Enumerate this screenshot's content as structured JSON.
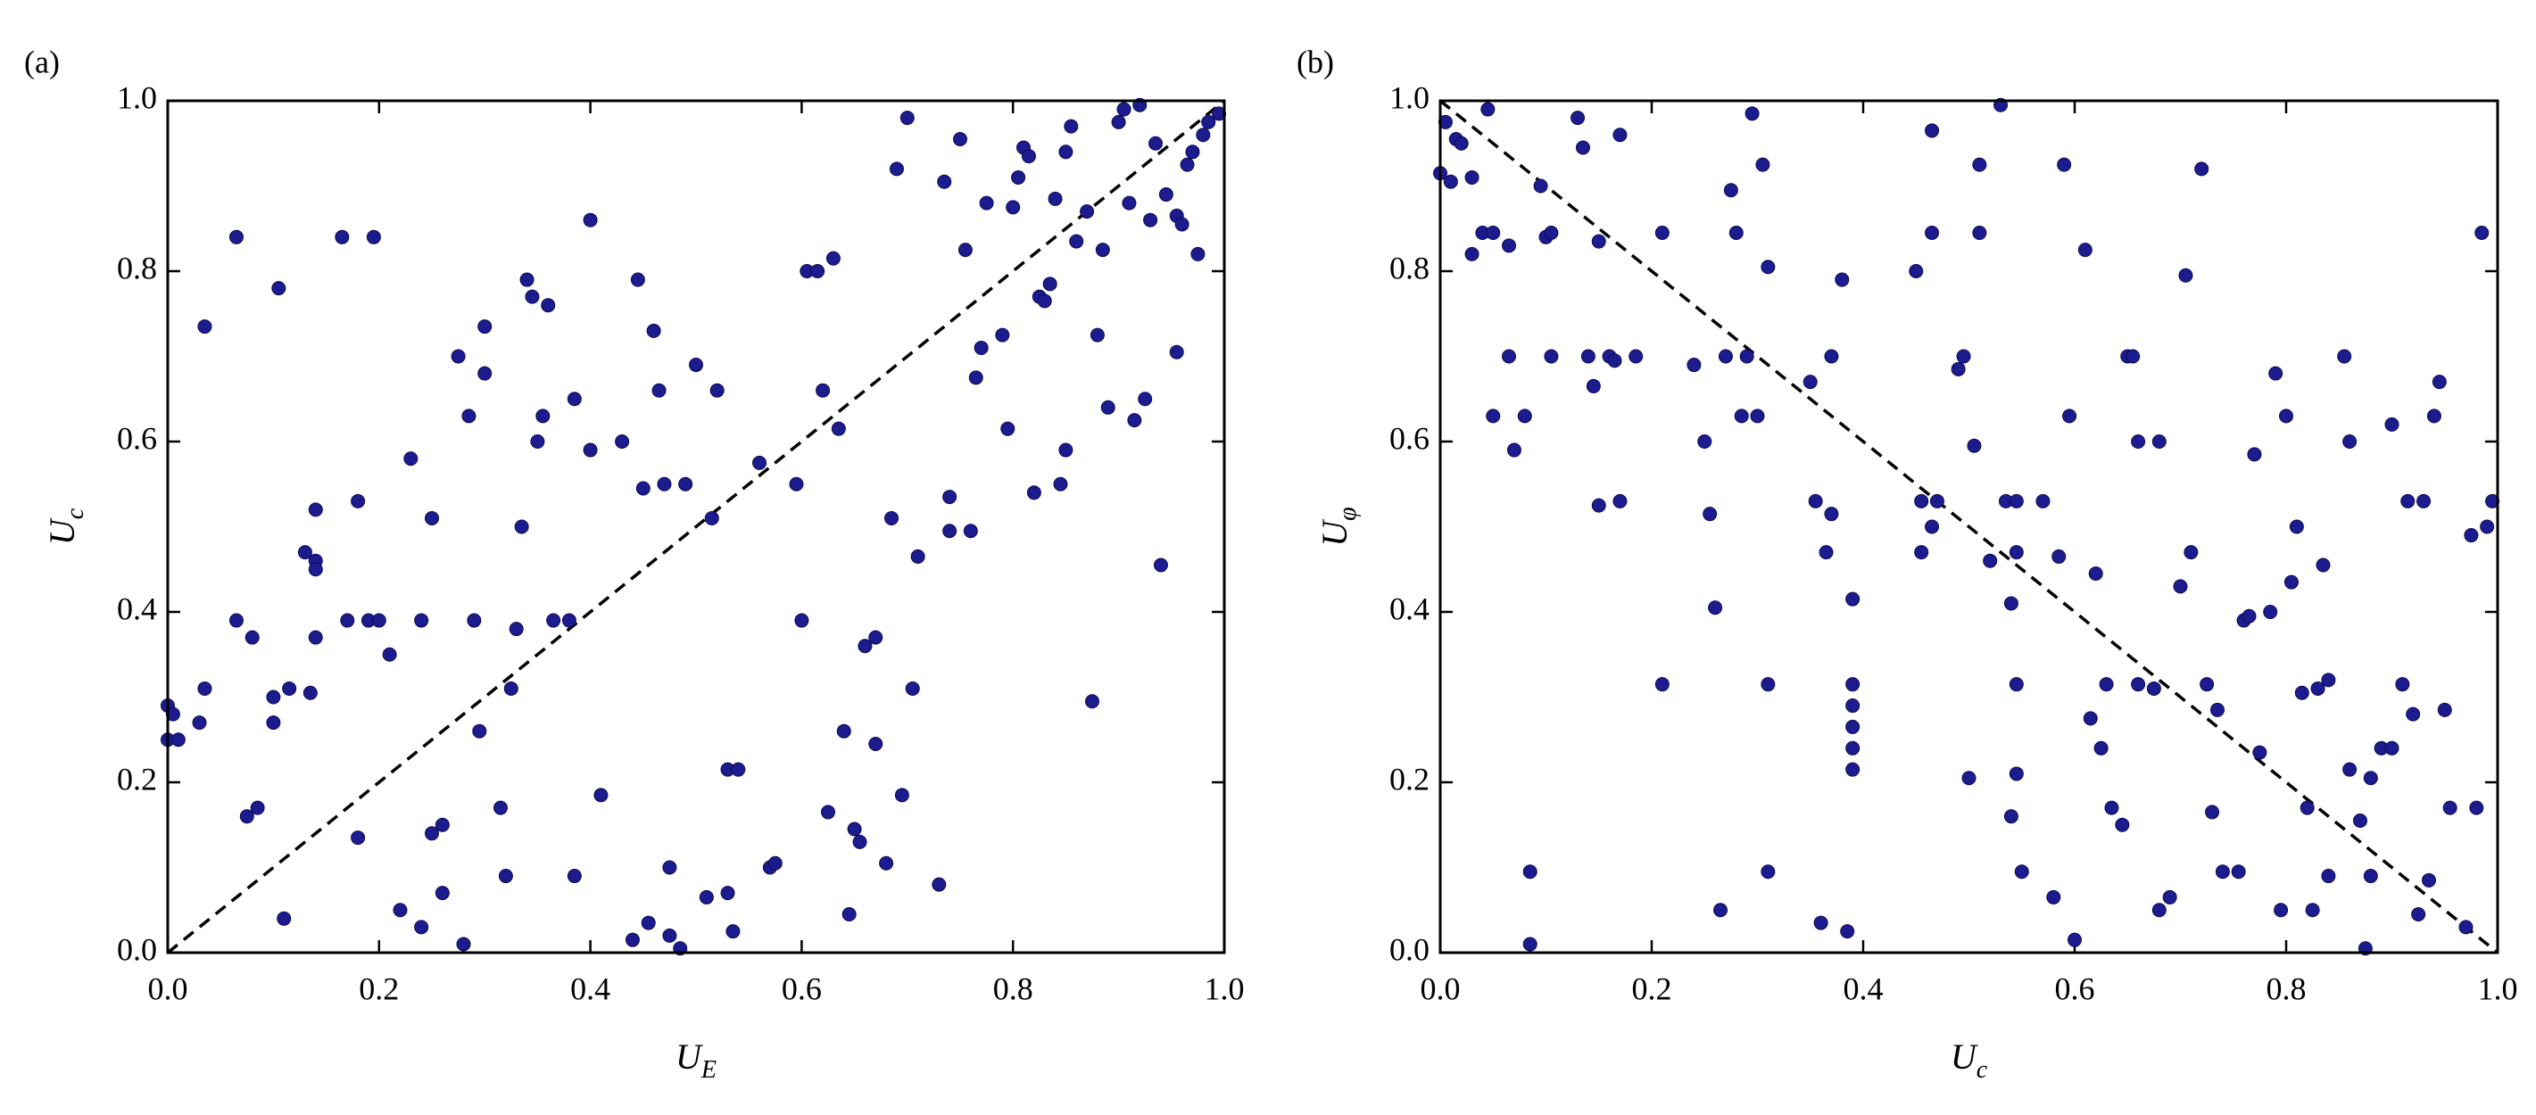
{
  "chart_data": [
    {
      "type": "scatter",
      "panel_label": "(a)",
      "x_label": {
        "main": "U",
        "sub": "E"
      },
      "y_label": {
        "main": "U",
        "sub": "c"
      },
      "color": "#1c1c8f",
      "xlim": [
        0,
        1
      ],
      "ylim": [
        0,
        1
      ],
      "xticks": [
        {
          "value": 0,
          "label": "0.0"
        },
        0.2,
        0.4,
        0.6,
        0.8,
        {
          "value": 1,
          "label": "1.0"
        }
      ],
      "yticks": [
        {
          "value": 0,
          "label": "0.0"
        },
        0.2,
        0.4,
        0.6,
        0.8,
        {
          "value": 1,
          "label": "1.0"
        }
      ],
      "reference_line": {
        "x": [
          0,
          1
        ],
        "y": [
          0,
          1
        ]
      },
      "x": [
        0,
        0.005,
        0,
        0.01,
        0.03,
        0.035,
        0.035,
        0.065,
        0.065,
        0.075,
        0.08,
        0.085,
        0.1,
        0.1,
        0.105,
        0.11,
        0.115,
        0.13,
        0.135,
        0.14,
        0.14,
        0.14,
        0.14,
        0.165,
        0.17,
        0.18,
        0.18,
        0.19,
        0.195,
        0.2,
        0.21,
        0.22,
        0.23,
        0.24,
        0.24,
        0.25,
        0.25,
        0.26,
        0.26,
        0.275,
        0.28,
        0.285,
        0.29,
        0.295,
        0.3,
        0.3,
        0.315,
        0.32,
        0.325,
        0.33,
        0.335,
        0.34,
        0.345,
        0.35,
        0.355,
        0.36,
        0.365,
        0.38,
        0.385,
        0.385,
        0.4,
        0.4,
        0.41,
        0.43,
        0.44,
        0.445,
        0.45,
        0.455,
        0.46,
        0.465,
        0.47,
        0.475,
        0.475,
        0.485,
        0.49,
        0.5,
        0.51,
        0.515,
        0.52,
        0.53,
        0.53,
        0.535,
        0.54,
        0.56,
        0.57,
        0.575,
        0.595,
        0.6,
        0.605,
        0.615,
        0.62,
        0.625,
        0.63,
        0.635,
        0.64,
        0.645,
        0.65,
        0.655,
        0.66,
        0.67,
        0.67,
        0.68,
        0.685,
        0.69,
        0.695,
        0.7,
        0.705,
        0.71,
        0.73,
        0.735,
        0.74,
        0.74,
        0.75,
        0.755,
        0.76,
        0.765,
        0.77,
        0.775,
        0.79,
        0.795,
        0.8,
        0.805,
        0.81,
        0.815,
        0.82,
        0.825,
        0.83,
        0.835,
        0.84,
        0.845,
        0.85,
        0.85,
        0.855,
        0.86,
        0.87,
        0.875,
        0.88,
        0.885,
        0.89,
        0.9,
        0.905,
        0.91,
        0.915,
        0.92,
        0.925,
        0.93,
        0.935,
        0.94,
        0.945,
        0.955,
        0.955,
        0.96,
        0.965,
        0.97,
        0.975,
        0.98,
        0.985,
        0.995
      ],
      "values": [
        0.29,
        0.28,
        0.25,
        0.25,
        0.27,
        0.31,
        0.735,
        0.84,
        0.39,
        0.16,
        0.37,
        0.17,
        0.27,
        0.3,
        0.78,
        0.04,
        0.31,
        0.47,
        0.305,
        0.46,
        0.45,
        0.52,
        0.37,
        0.84,
        0.39,
        0.53,
        0.135,
        0.39,
        0.84,
        0.39,
        0.35,
        0.05,
        0.58,
        0.03,
        0.39,
        0.51,
        0.14,
        0.15,
        0.07,
        0.7,
        0.01,
        0.63,
        0.39,
        0.26,
        0.68,
        0.735,
        0.17,
        0.09,
        0.31,
        0.38,
        0.5,
        0.79,
        0.77,
        0.6,
        0.63,
        0.76,
        0.39,
        0.39,
        0.09,
        0.65,
        0.86,
        0.59,
        0.185,
        0.6,
        0.015,
        0.79,
        0.545,
        0.035,
        0.73,
        0.66,
        0.55,
        0.1,
        0.02,
        0.005,
        0.55,
        0.69,
        0.065,
        0.51,
        0.66,
        0.215,
        0.07,
        0.025,
        0.215,
        0.575,
        0.1,
        0.105,
        0.55,
        0.39,
        0.8,
        0.8,
        0.66,
        0.165,
        0.815,
        0.615,
        0.26,
        0.045,
        0.145,
        0.13,
        0.36,
        0.37,
        0.245,
        0.105,
        0.51,
        0.92,
        0.185,
        0.98,
        0.31,
        0.465,
        0.08,
        0.905,
        0.535,
        0.495,
        0.955,
        0.825,
        0.495,
        0.675,
        0.71,
        0.88,
        0.725,
        0.615,
        0.875,
        0.91,
        0.945,
        0.935,
        0.54,
        0.77,
        0.765,
        0.785,
        0.885,
        0.55,
        0.59,
        0.94,
        0.97,
        0.835,
        0.87,
        0.295,
        0.725,
        0.825,
        0.64,
        0.975,
        0.99,
        0.88,
        0.625,
        0.995,
        0.65,
        0.86,
        0.95,
        0.455,
        0.89,
        0.705,
        0.865,
        0.855,
        0.925,
        0.94,
        0.82,
        0.96,
        0.975,
        0.985
      ]
    },
    {
      "type": "scatter",
      "panel_label": "(b)",
      "x_label": {
        "main": "U",
        "sub": "c"
      },
      "y_label": {
        "main": "U",
        "sub": "φ"
      },
      "color": "#1c1c8f",
      "xlim": [
        0,
        1
      ],
      "ylim": [
        0,
        1
      ],
      "xticks": [
        {
          "value": 0,
          "label": "0.0"
        },
        0.2,
        0.4,
        0.6,
        0.8,
        {
          "value": 1,
          "label": "1.0"
        }
      ],
      "yticks": [
        {
          "value": 0,
          "label": "0.0"
        },
        0.2,
        0.4,
        0.6,
        0.8,
        {
          "value": 1,
          "label": "1.0"
        }
      ],
      "reference_line": {
        "x": [
          0,
          1
        ],
        "y": [
          1,
          0
        ]
      },
      "x": [
        0,
        0.005,
        0.01,
        0.015,
        0.02,
        0.03,
        0.03,
        0.04,
        0.045,
        0.05,
        0.05,
        0.065,
        0.065,
        0.07,
        0.08,
        0.085,
        0.085,
        0.095,
        0.1,
        0.105,
        0.105,
        0.13,
        0.135,
        0.14,
        0.145,
        0.15,
        0.15,
        0.16,
        0.165,
        0.17,
        0.17,
        0.185,
        0.21,
        0.21,
        0.24,
        0.25,
        0.255,
        0.26,
        0.265,
        0.27,
        0.275,
        0.28,
        0.285,
        0.29,
        0.295,
        0.3,
        0.305,
        0.31,
        0.31,
        0.31,
        0.35,
        0.355,
        0.36,
        0.365,
        0.37,
        0.37,
        0.38,
        0.385,
        0.39,
        0.39,
        0.39,
        0.39,
        0.39,
        0.39,
        0.45,
        0.455,
        0.455,
        0.465,
        0.465,
        0.465,
        0.47,
        0.49,
        0.495,
        0.5,
        0.505,
        0.51,
        0.51,
        0.52,
        0.53,
        0.535,
        0.54,
        0.54,
        0.545,
        0.545,
        0.545,
        0.545,
        0.55,
        0.57,
        0.58,
        0.585,
        0.59,
        0.595,
        0.6,
        0.61,
        0.615,
        0.62,
        0.625,
        0.63,
        0.635,
        0.645,
        0.65,
        0.655,
        0.66,
        0.66,
        0.675,
        0.68,
        0.68,
        0.69,
        0.7,
        0.705,
        0.71,
        0.72,
        0.725,
        0.73,
        0.735,
        0.74,
        0.755,
        0.76,
        0.765,
        0.77,
        0.775,
        0.785,
        0.79,
        0.795,
        0.8,
        0.805,
        0.81,
        0.815,
        0.82,
        0.825,
        0.83,
        0.835,
        0.84,
        0.84,
        0.855,
        0.86,
        0.86,
        0.87,
        0.875,
        0.88,
        0.88,
        0.89,
        0.9,
        0.9,
        0.91,
        0.915,
        0.92,
        0.925,
        0.93,
        0.935,
        0.94,
        0.945,
        0.95,
        0.955,
        0.97,
        0.975,
        0.98,
        0.985,
        0.99,
        0.995
      ],
      "values": [
        0.915,
        0.975,
        0.905,
        0.955,
        0.95,
        0.91,
        0.82,
        0.845,
        0.99,
        0.845,
        0.63,
        0.7,
        0.83,
        0.59,
        0.63,
        0.01,
        0.095,
        0.9,
        0.84,
        0.845,
        0.7,
        0.98,
        0.945,
        0.7,
        0.665,
        0.835,
        0.525,
        0.7,
        0.695,
        0.96,
        0.53,
        0.7,
        0.845,
        0.315,
        0.69,
        0.6,
        0.515,
        0.405,
        0.05,
        0.7,
        0.895,
        0.845,
        0.63,
        0.7,
        0.985,
        0.63,
        0.925,
        0.805,
        0.315,
        0.095,
        0.67,
        0.53,
        0.035,
        0.47,
        0.7,
        0.515,
        0.79,
        0.025,
        0.415,
        0.315,
        0.29,
        0.265,
        0.24,
        0.215,
        0.8,
        0.47,
        0.53,
        0.965,
        0.845,
        0.5,
        0.53,
        0.685,
        0.7,
        0.205,
        0.595,
        0.925,
        0.845,
        0.46,
        0.995,
        0.53,
        0.41,
        0.16,
        0.315,
        0.53,
        0.47,
        0.21,
        0.095,
        0.53,
        0.065,
        0.465,
        0.925,
        0.63,
        0.015,
        0.825,
        0.275,
        0.445,
        0.24,
        0.315,
        0.17,
        0.15,
        0.7,
        0.7,
        0.6,
        0.315,
        0.31,
        0.05,
        0.6,
        0.065,
        0.43,
        0.795,
        0.47,
        0.92,
        0.315,
        0.165,
        0.285,
        0.095,
        0.095,
        0.39,
        0.395,
        0.585,
        0.235,
        0.4,
        0.68,
        0.05,
        0.63,
        0.435,
        0.5,
        0.305,
        0.17,
        0.05,
        0.31,
        0.455,
        0.32,
        0.09,
        0.7,
        0.6,
        0.215,
        0.155,
        0.005,
        0.205,
        0.09,
        0.24,
        0.62,
        0.24,
        0.315,
        0.53,
        0.28,
        0.045,
        0.53,
        0.085,
        0.63,
        0.67,
        0.285,
        0.17,
        0.03,
        0.49,
        0.17,
        0.845,
        0.5,
        0.53
      ]
    }
  ]
}
